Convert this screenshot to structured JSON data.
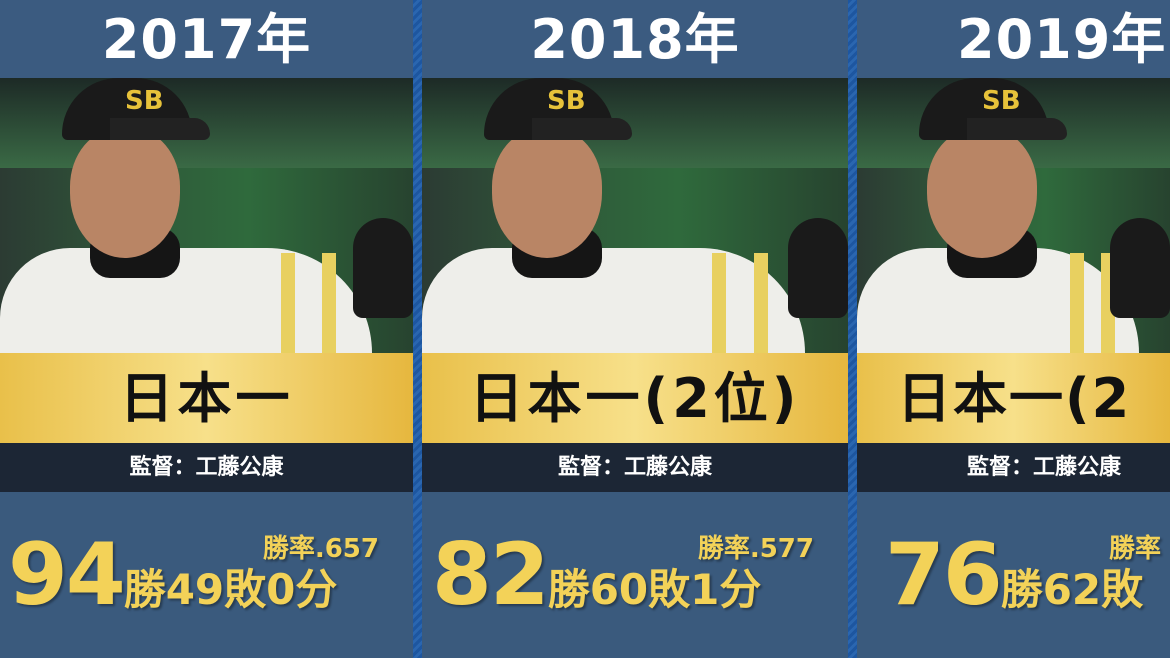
{
  "accent_colors": {
    "gold": "#f3d258",
    "panel": "#3a5a7d",
    "dark_band": "#1c2635",
    "separator": "#1f5aa0"
  },
  "seasons": [
    {
      "year": "2017年",
      "result": "日本一",
      "manager": "監督：工藤公康",
      "win_rate": "勝率.657",
      "wins": "94",
      "win_suffix": "勝",
      "losses": "49",
      "loss_suffix": "敗",
      "draws": "0",
      "draw_suffix": "分"
    },
    {
      "year": "2018年",
      "result": "日本一(2位)",
      "manager": "監督：工藤公康",
      "win_rate": "勝率.577",
      "wins": "82",
      "win_suffix": "勝",
      "losses": "60",
      "loss_suffix": "敗",
      "draws": "1",
      "draw_suffix": "分"
    },
    {
      "year": "2019年",
      "result": "日本一(2",
      "manager": "監督：工藤公康",
      "win_rate": "勝率",
      "wins": "76",
      "win_suffix": "勝",
      "losses": "62",
      "loss_suffix": "敗"
    }
  ]
}
